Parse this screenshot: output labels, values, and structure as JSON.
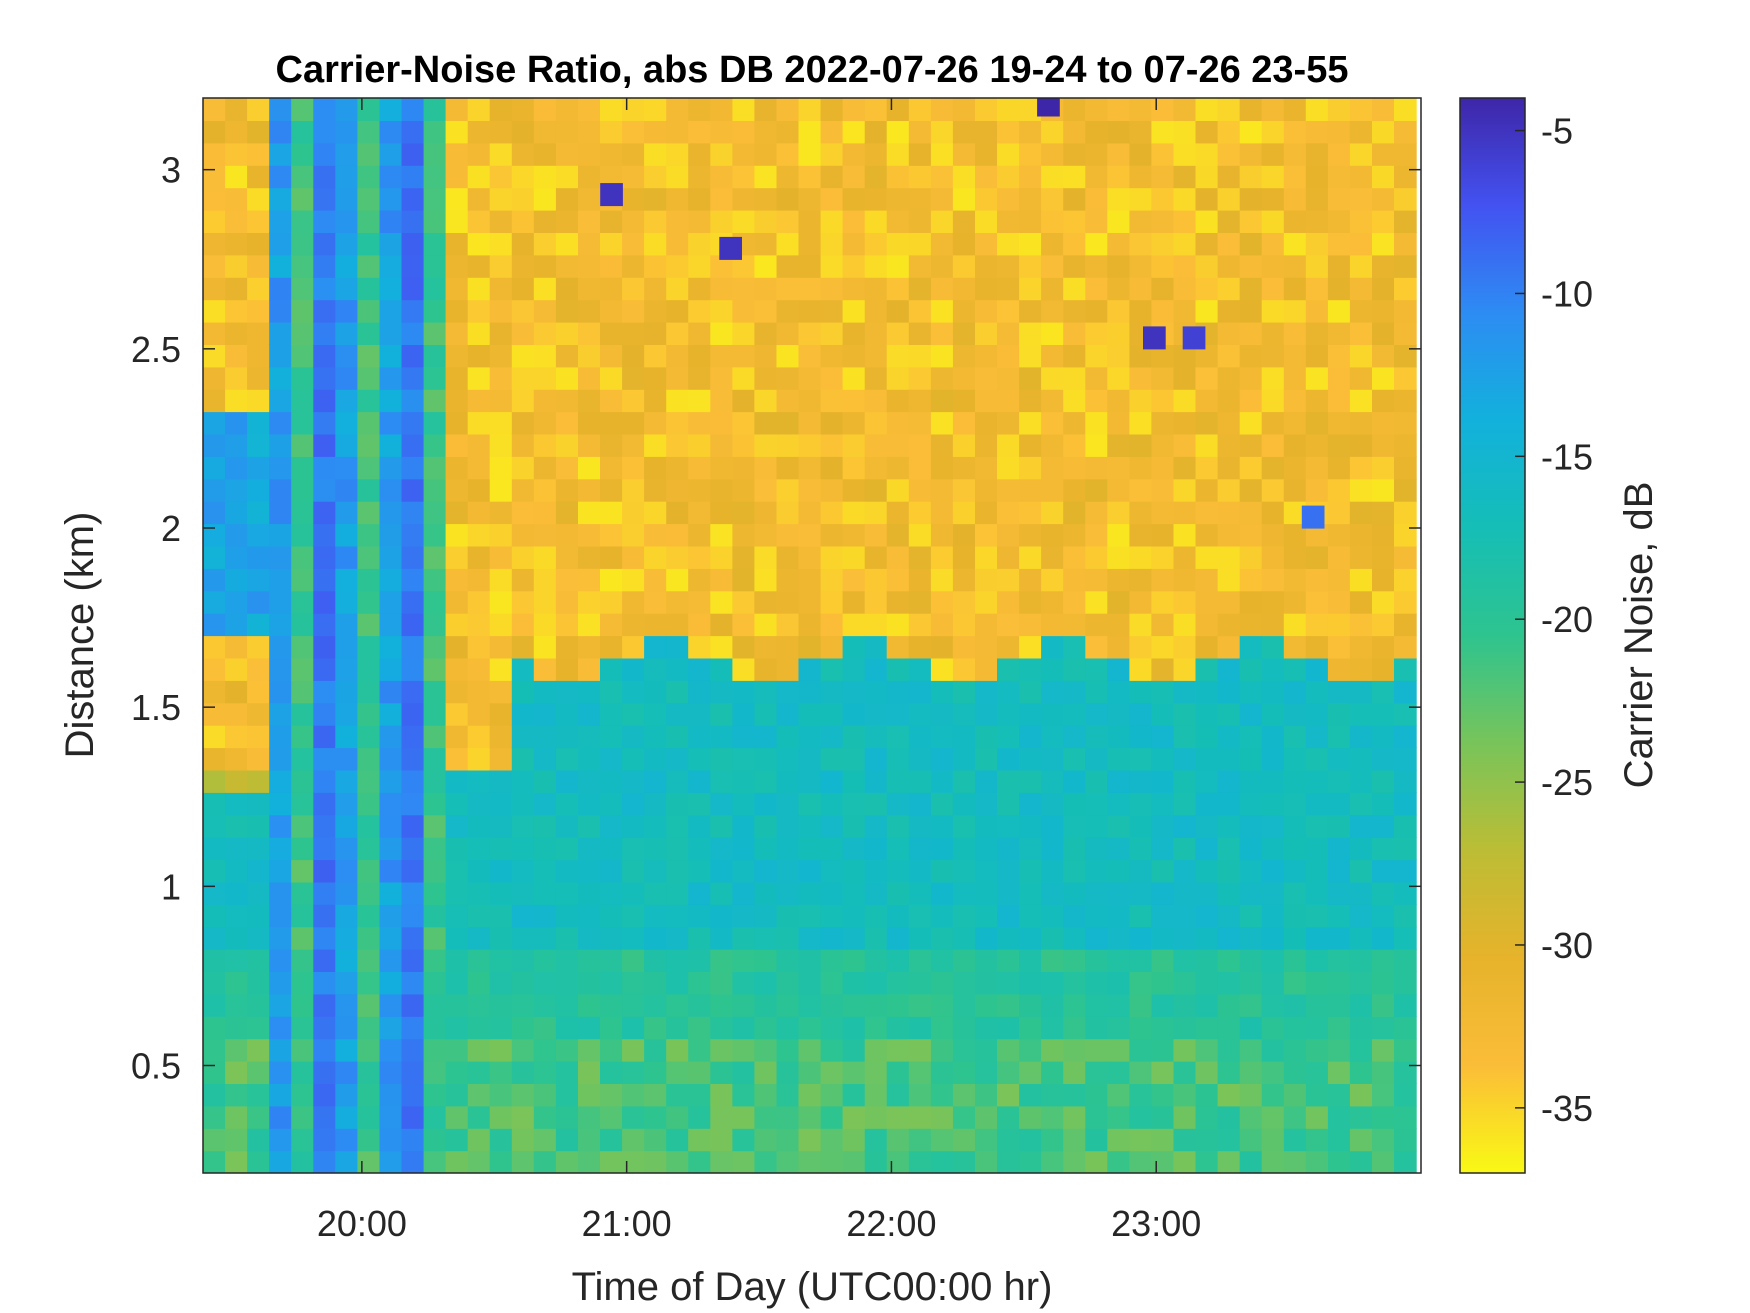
{
  "chart_data": {
    "type": "heatmap",
    "title": "Carrier-Noise Ratio, abs DB 2022-07-26 19-24 to 07-26 23-55",
    "xlabel": "Time of Day (UTC00:00 hr)",
    "ylabel": "Distance (km)",
    "x_ticks": [
      "20:00",
      "21:00",
      "22:00",
      "23:00"
    ],
    "x_tick_hours": [
      20,
      21,
      22,
      23
    ],
    "xlim_hours": [
      19.4,
      24.0
    ],
    "y_ticks": [
      "0.5",
      "1",
      "1.5",
      "2",
      "2.5",
      "3"
    ],
    "y_tick_values": [
      0.5,
      1.0,
      1.5,
      2.0,
      2.5,
      3.0
    ],
    "ylim_km": [
      0.2,
      3.2
    ],
    "colorbar": {
      "label": "Carrier Noise, dB",
      "ticks": [
        "-5",
        "-10",
        "-15",
        "-20",
        "-25",
        "-30",
        "-35"
      ],
      "tick_values": [
        -5,
        -10,
        -15,
        -20,
        -25,
        -30,
        -35
      ],
      "range": [
        -37,
        -4
      ],
      "colormap": [
        "#3e26a8",
        "#4352f1",
        "#2d8cf3",
        "#12b1dc",
        "#15beb6",
        "#2ec48f",
        "#78c45a",
        "#bcbd35",
        "#e6b32b",
        "#fbbd38",
        "#f9f915"
      ]
    },
    "grid": {
      "time_start_hour": 19.4,
      "time_step_hour": 0.0833,
      "n_time": 55,
      "distance_start_km": 0.2,
      "distance_step_km": 0.0625,
      "n_distance": 48
    },
    "features": {
      "low_snr_background_db": -33,
      "boundary_layer_top_km_before_2030": 1.3,
      "boundary_layer_top_km_after_2030": 1.6,
      "cloud_cols_hour_range": [
        19.6,
        20.25
      ],
      "strong_returns": [
        {
          "time_hour": 20.9,
          "distance_km": 2.9,
          "value_db": -5
        },
        {
          "time_hour": 21.35,
          "distance_km": 2.75,
          "value_db": -5
        },
        {
          "time_hour": 22.55,
          "distance_km": 3.15,
          "value_db": -4
        },
        {
          "time_hour": 22.95,
          "distance_km": 2.5,
          "value_db": -5
        },
        {
          "time_hour": 23.1,
          "distance_km": 2.5,
          "value_db": -6
        },
        {
          "time_hour": 23.55,
          "distance_km": 2.0,
          "value_db": -9
        }
      ]
    }
  }
}
